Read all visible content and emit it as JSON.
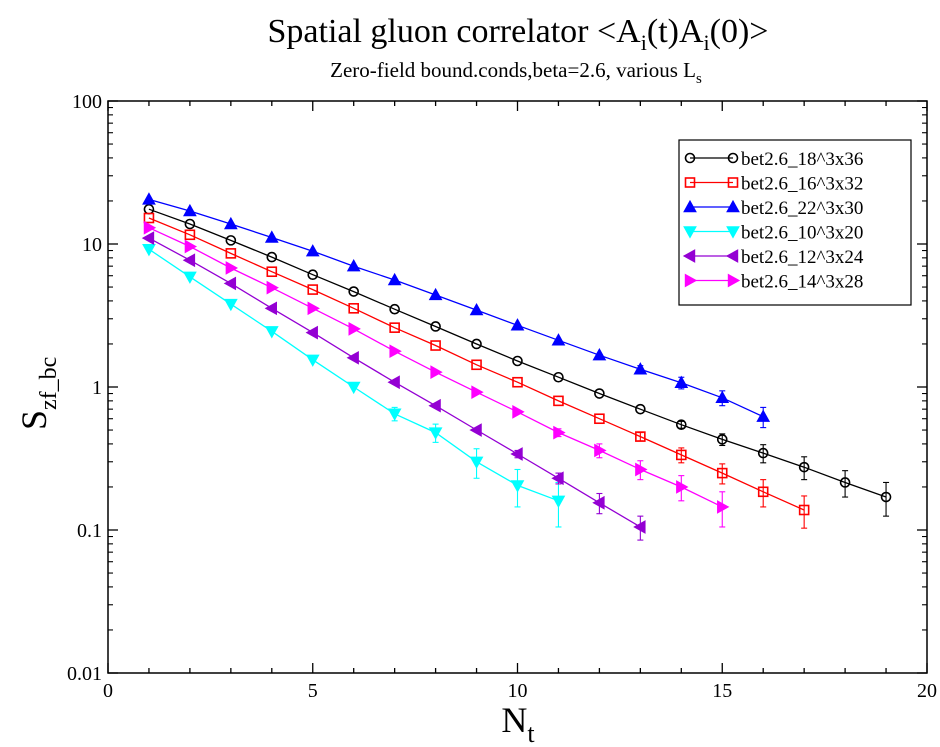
{
  "chart_data": {
    "type": "line",
    "title": {
      "main": "Spatial gluon correlator <A",
      "sub1": "i",
      "mid": "(t)A",
      "sub2": "i",
      "end": "(0)>"
    },
    "subtitle": {
      "main": "Zero-field bound.conds,beta=2.6, various L",
      "sub": "s"
    },
    "xlabel": {
      "main": "N",
      "sub": "t"
    },
    "ylabel": {
      "main": "S",
      "sub": "zf_bc"
    },
    "xlim": [
      0,
      20
    ],
    "ylim": [
      0.01,
      100
    ],
    "yscale": "log",
    "x_ticks": [
      "0",
      "5",
      "10",
      "15",
      "20"
    ],
    "y_ticks": [
      "0.01",
      "0.1",
      "1",
      "10",
      "100"
    ],
    "grid": false,
    "legend_position": "top-right",
    "series": [
      {
        "name": "bet2.6_18^3x36",
        "color": "#000000",
        "marker": "circle",
        "x": [
          1,
          2,
          3,
          4,
          5,
          6,
          7,
          8,
          9,
          10,
          11,
          12,
          13,
          14,
          15,
          16,
          17,
          18,
          19
        ],
        "y": [
          17.5,
          13.8,
          10.6,
          8.1,
          6.1,
          4.65,
          3.5,
          2.65,
          2.0,
          1.52,
          1.17,
          0.9,
          0.7,
          0.545,
          0.43,
          0.345,
          0.275,
          0.215,
          0.17
        ],
        "err": [
          0,
          0,
          0,
          0,
          0,
          0,
          0,
          0,
          0,
          0,
          0,
          0,
          0,
          0.03,
          0.04,
          0.05,
          0.05,
          0.045,
          0.045
        ]
      },
      {
        "name": "bet2.6_16^3x32",
        "color": "#ff0000",
        "marker": "square",
        "x": [
          1,
          2,
          3,
          4,
          5,
          6,
          7,
          8,
          9,
          10,
          11,
          12,
          13,
          14,
          15,
          16,
          17
        ],
        "y": [
          15.2,
          11.6,
          8.6,
          6.4,
          4.8,
          3.55,
          2.6,
          1.95,
          1.43,
          1.08,
          0.8,
          0.6,
          0.45,
          0.335,
          0.25,
          0.185,
          0.138
        ],
        "err": [
          0,
          0,
          0,
          0,
          0,
          0,
          0,
          0,
          0,
          0,
          0,
          0,
          0.03,
          0.04,
          0.04,
          0.04,
          0.035
        ]
      },
      {
        "name": "bet2.6_22^3x30",
        "color": "#0000ff",
        "marker": "triangle-up",
        "x": [
          1,
          2,
          3,
          4,
          5,
          6,
          7,
          8,
          9,
          10,
          11,
          12,
          13,
          14,
          15,
          16
        ],
        "y": [
          20.5,
          17.0,
          13.8,
          11.1,
          8.9,
          7.0,
          5.6,
          4.4,
          3.45,
          2.7,
          2.12,
          1.67,
          1.33,
          1.07,
          0.84,
          0.62
        ],
        "err": [
          0,
          0,
          0,
          0,
          0,
          0,
          0,
          0,
          0,
          0,
          0,
          0,
          0.08,
          0.1,
          0.1,
          0.1
        ]
      },
      {
        "name": "bet2.6_10^3x20",
        "color": "#00ffff",
        "marker": "triangle-down",
        "x": [
          1,
          2,
          3,
          4,
          5,
          6,
          7,
          8,
          9,
          10,
          11
        ],
        "y": [
          9.2,
          5.9,
          3.8,
          2.45,
          1.55,
          1.0,
          0.65,
          0.48,
          0.3,
          0.205,
          0.16
        ],
        "err": [
          0,
          0,
          0,
          0,
          0,
          0,
          0.07,
          0.07,
          0.07,
          0.06,
          0.055
        ]
      },
      {
        "name": "bet2.6_12^3x24",
        "color": "#9400d3",
        "marker": "triangle-left",
        "x": [
          1,
          2,
          3,
          4,
          5,
          6,
          7,
          8,
          9,
          10,
          11,
          12,
          13
        ],
        "y": [
          11.0,
          7.7,
          5.3,
          3.55,
          2.4,
          1.6,
          1.08,
          0.74,
          0.5,
          0.34,
          0.23,
          0.155,
          0.105
        ],
        "err": [
          0,
          0,
          0,
          0,
          0,
          0,
          0,
          0,
          0,
          0.02,
          0.02,
          0.025,
          0.02
        ]
      },
      {
        "name": "bet2.6_14^3x28",
        "color": "#ff00ff",
        "marker": "triangle-right",
        "x": [
          1,
          2,
          3,
          4,
          5,
          6,
          7,
          8,
          9,
          10,
          11,
          12,
          13,
          14,
          15
        ],
        "y": [
          13.0,
          9.6,
          6.8,
          4.95,
          3.55,
          2.55,
          1.78,
          1.27,
          0.92,
          0.67,
          0.48,
          0.36,
          0.265,
          0.2,
          0.145
        ],
        "err": [
          0,
          0,
          0,
          0,
          0,
          0,
          0,
          0,
          0,
          0,
          0.03,
          0.04,
          0.04,
          0.04,
          0.04
        ]
      }
    ]
  }
}
